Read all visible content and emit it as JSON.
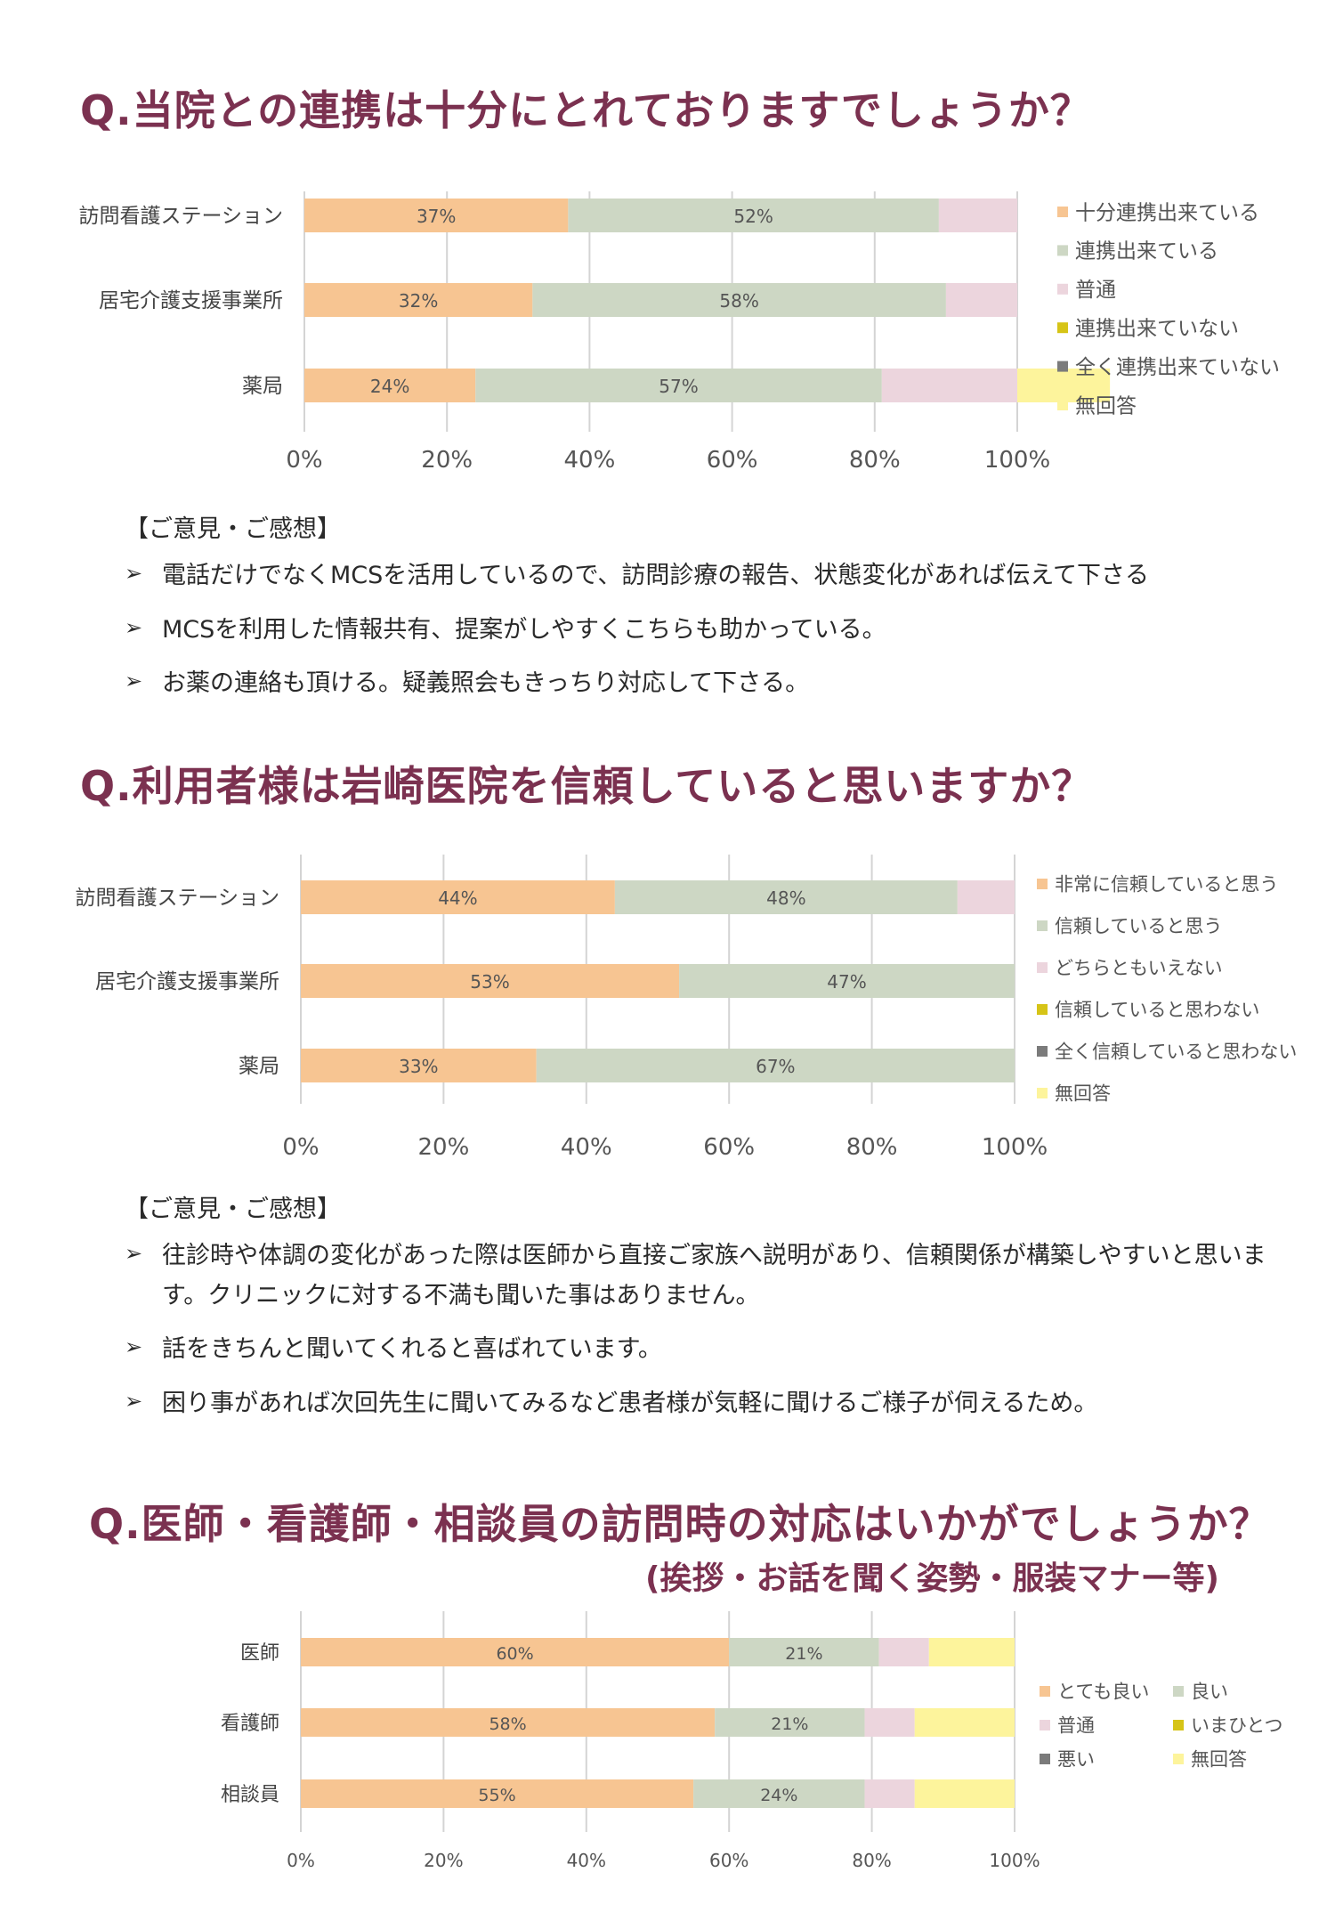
{
  "colors": {
    "c1": "#f7c592",
    "c2": "#cdd7c4",
    "c3": "#ecd5dd",
    "c4": "#d6c417",
    "c5": "#7b7b7b",
    "c6": "#fdf49c",
    "title": "#7b3150",
    "grid": "#d4d4d4"
  },
  "arrow_glyph": "➢",
  "section1": {
    "title": "Q.当院との連携は十分にとれておりますでしょうか？",
    "comments_header": "【ご意見・ご感想】",
    "comments": [
      "電話だけでなくMCSを活用しているので、訪問診療の報告、状態変化があれば伝えて下さる",
      "MCSを利用した情報共有、提案がしやすくこちらも助かっている。",
      "お薬の連絡も頂ける。疑義照会もきっちり対応して下さる。"
    ]
  },
  "section2": {
    "title": "Q.利用者様は岩崎医院を信頼していると思いますか？",
    "comments_header": "【ご意見・ご感想】",
    "comments": [
      "往診時や体調の変化があった際は医師から直接ご家族へ説明があり、信頼関係が構築しやすいと思います。クリニックに対する不満も聞いた事はありません。",
      "話をきちんと聞いてくれると喜ばれています。",
      "困り事があれば次回先生に聞いてみるなど患者様が気軽に聞けるご様子が伺えるため。"
    ]
  },
  "section3": {
    "title": "Q.医師・看護師・相談員の訪問時の対応はいかがでしょうか？",
    "subtitle": "(挨拶・お話を聞く姿勢・服装マナー等)"
  },
  "chart_data": [
    {
      "type": "bar",
      "orientation": "horizontal",
      "stacked": "percent",
      "categories": [
        "訪問看護ステーション",
        "居宅介護支援事業所",
        "薬局"
      ],
      "series": [
        {
          "name": "十分連携出来ている",
          "values": [
            37,
            32,
            24
          ],
          "labels": [
            "37%",
            "32%",
            "24%"
          ]
        },
        {
          "name": "連携出来ている",
          "values": [
            52,
            58,
            57
          ],
          "labels": [
            "52%",
            "58%",
            "57%"
          ]
        },
        {
          "name": "普通",
          "values": [
            11,
            10,
            19
          ],
          "labels": [
            "",
            "",
            ""
          ]
        },
        {
          "name": "連携出来ていない",
          "values": [
            0,
            0,
            0
          ],
          "labels": [
            "",
            "",
            ""
          ]
        },
        {
          "name": "全く連携出来ていない",
          "values": [
            0,
            0,
            0
          ],
          "labels": [
            "",
            "",
            ""
          ]
        },
        {
          "name": "無回答",
          "values": [
            0,
            0,
            13
          ],
          "labels": [
            "",
            "",
            ""
          ]
        }
      ],
      "x_ticks": [
        "0%",
        "20%",
        "40%",
        "60%",
        "80%",
        "100%"
      ],
      "xlim": [
        0,
        100
      ],
      "grid": true,
      "legend": "right"
    },
    {
      "type": "bar",
      "orientation": "horizontal",
      "stacked": "percent",
      "categories": [
        "訪問看護ステーション",
        "居宅介護支援事業所",
        "薬局"
      ],
      "series": [
        {
          "name": "非常に信頼していると思う",
          "values": [
            44,
            53,
            33
          ],
          "labels": [
            "44%",
            "53%",
            "33%"
          ]
        },
        {
          "name": "信頼していると思う",
          "values": [
            48,
            47,
            67
          ],
          "labels": [
            "48%",
            "47%",
            "67%"
          ]
        },
        {
          "name": "どちらともいえない",
          "values": [
            8,
            0,
            0
          ],
          "labels": [
            "",
            "",
            ""
          ]
        },
        {
          "name": "信頼していると思わない",
          "values": [
            0,
            0,
            0
          ],
          "labels": [
            "",
            "",
            ""
          ]
        },
        {
          "name": "全く信頼していると思わない",
          "values": [
            0,
            0,
            0
          ],
          "labels": [
            "",
            "",
            ""
          ]
        },
        {
          "name": "無回答",
          "values": [
            0,
            0,
            0
          ],
          "labels": [
            "",
            "",
            ""
          ]
        }
      ],
      "x_ticks": [
        "0%",
        "20%",
        "40%",
        "60%",
        "80%",
        "100%"
      ],
      "xlim": [
        0,
        100
      ],
      "grid": true,
      "legend": "right"
    },
    {
      "type": "bar",
      "orientation": "horizontal",
      "stacked": "percent",
      "categories": [
        "医師",
        "看護師",
        "相談員"
      ],
      "series": [
        {
          "name": "とても良い",
          "values": [
            60,
            58,
            55
          ],
          "labels": [
            "60%",
            "58%",
            "55%"
          ]
        },
        {
          "name": "良い",
          "values": [
            21,
            21,
            24
          ],
          "labels": [
            "21%",
            "21%",
            "24%"
          ]
        },
        {
          "name": "普通",
          "values": [
            7,
            7,
            7
          ],
          "labels": [
            "",
            "",
            ""
          ]
        },
        {
          "name": "いまひとつ",
          "values": [
            0,
            0,
            0
          ],
          "labels": [
            "",
            "",
            ""
          ]
        },
        {
          "name": "悪い",
          "values": [
            0,
            0,
            0
          ],
          "labels": [
            "",
            "",
            ""
          ]
        },
        {
          "name": "無回答",
          "values": [
            12,
            14,
            14
          ],
          "labels": [
            "",
            "",
            ""
          ]
        }
      ],
      "x_ticks": [
        "0%",
        "20%",
        "40%",
        "60%",
        "80%",
        "100%"
      ],
      "xlim": [
        0,
        100
      ],
      "grid": true,
      "legend": "right-two-columns"
    }
  ]
}
